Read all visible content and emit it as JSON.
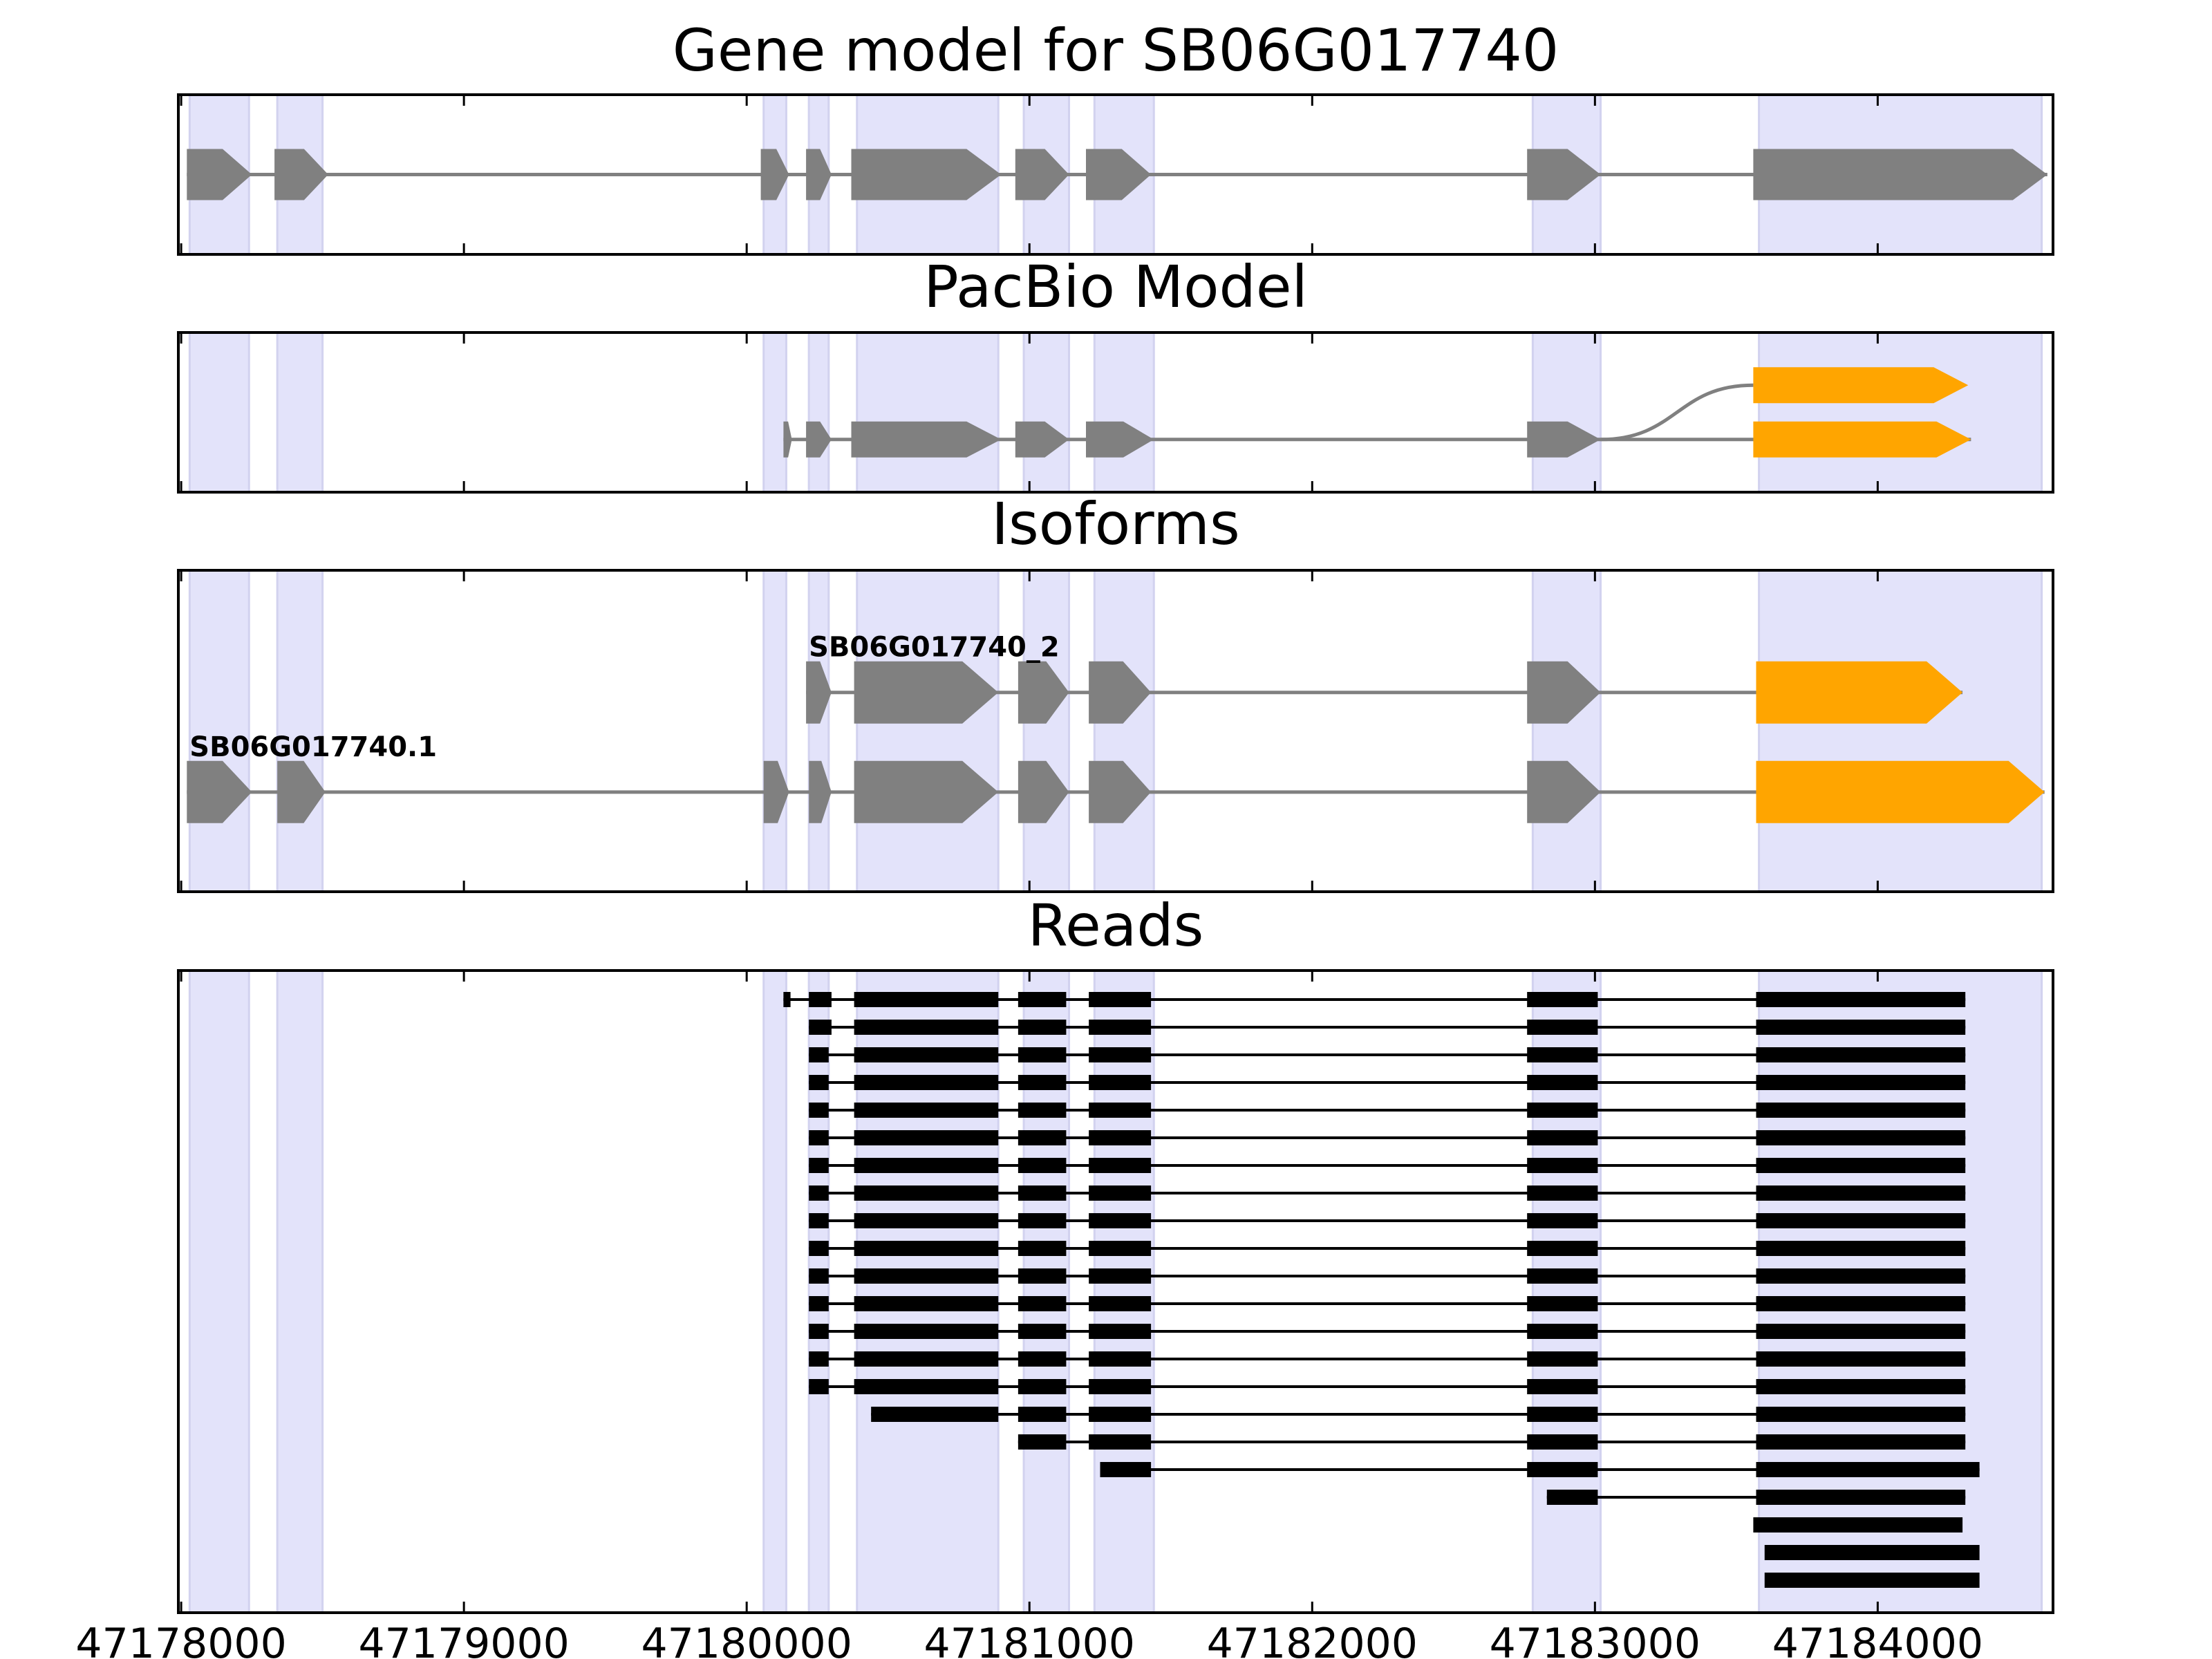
{
  "chart_data": {
    "type": "gene-track",
    "xlim": [
      47177990,
      47184620
    ],
    "x_ticks": [
      47178000,
      47179000,
      47180000,
      47181000,
      47182000,
      47183000,
      47184000
    ],
    "x_tick_labels": [
      "47178000",
      "47179000",
      "47180000",
      "47181000",
      "47182000",
      "47183000",
      "47184000"
    ],
    "colors": {
      "shade": "#e3e3fa",
      "shade_edge": "#d2d2ef",
      "exon": "#808080",
      "intron": "#808080",
      "cds": "#ffa500",
      "read": "#000000"
    },
    "highlight_regions": [
      [
        47178030,
        47178240
      ],
      [
        47178340,
        47178500
      ],
      [
        47180060,
        47180140
      ],
      [
        47180220,
        47180290
      ],
      [
        47180390,
        47180890
      ],
      [
        47180980,
        47181140
      ],
      [
        47181230,
        47181440
      ],
      [
        47182780,
        47183020
      ],
      [
        47183580,
        47184580
      ]
    ],
    "panels": [
      {
        "title": "Gene model for SB06G017740",
        "tracks": [
          {
            "y": 0.5,
            "exons": [
              [
                47178020,
                47178250
              ],
              [
                47178330,
                47178520
              ],
              [
                47180050,
                47180150
              ],
              [
                47180210,
                47180300
              ],
              [
                47180370,
                47180900
              ],
              [
                47180950,
                47181140
              ],
              [
                47181200,
                47181430
              ],
              [
                47182760,
                47183020
              ],
              [
                47183560,
                47184600
              ]
            ],
            "orange": []
          }
        ]
      },
      {
        "title": "PacBio Model",
        "tracks": [
          {
            "y": 0.33,
            "exons": [
              [
                47183560,
                47184320
              ]
            ],
            "orange": [
              [
                47183560,
                47184320
              ]
            ],
            "join_from": 47183020
          },
          {
            "y": 0.67,
            "exons": [
              [
                47180130,
                47180160
              ],
              [
                47180210,
                47180300
              ],
              [
                47180370,
                47180900
              ],
              [
                47180950,
                47181140
              ],
              [
                47181200,
                47181440
              ],
              [
                47182760,
                47183020
              ],
              [
                47183560,
                47184330
              ]
            ],
            "orange": [
              [
                47183560,
                47184330
              ]
            ]
          }
        ]
      },
      {
        "title": "Isoforms",
        "tracks": [
          {
            "y": 0.38,
            "label": "SB06G017740_2",
            "exons": [
              [
                47180210,
                47180300
              ],
              [
                47180380,
                47180890
              ],
              [
                47180960,
                47181140
              ],
              [
                47181210,
                47181430
              ],
              [
                47182760,
                47183020
              ],
              [
                47183570,
                47184300
              ]
            ],
            "orange": [
              [
                47183570,
                47184300
              ]
            ]
          },
          {
            "y": 0.69,
            "label": "SB06G017740.1",
            "exons": [
              [
                47178020,
                47178250
              ],
              [
                47178340,
                47178510
              ],
              [
                47180060,
                47180150
              ],
              [
                47180220,
                47180300
              ],
              [
                47180380,
                47180890
              ],
              [
                47180960,
                47181140
              ],
              [
                47181210,
                47181430
              ],
              [
                47182760,
                47183020
              ],
              [
                47183570,
                47184590
              ]
            ],
            "orange": [
              [
                47183570,
                47184590
              ]
            ]
          }
        ]
      },
      {
        "title": "Reads",
        "reads": [
          {
            "exons": [
              [
                47180130,
                47180155
              ],
              [
                47180220,
                47180300
              ],
              [
                47180380,
                47180890
              ],
              [
                47180960,
                47181130
              ],
              [
                47181210,
                47181430
              ],
              [
                47182760,
                47183010
              ],
              [
                47183570,
                47184310
              ]
            ]
          },
          {
            "exons": [
              [
                47180220,
                47180300
              ],
              [
                47180380,
                47180890
              ],
              [
                47180960,
                47181130
              ],
              [
                47181210,
                47181430
              ],
              [
                47182760,
                47183010
              ],
              [
                47183570,
                47184310
              ]
            ]
          },
          {
            "exons": [
              [
                47180220,
                47180290
              ],
              [
                47180380,
                47180890
              ],
              [
                47180960,
                47181130
              ],
              [
                47181210,
                47181430
              ],
              [
                47182760,
                47183010
              ],
              [
                47183570,
                47184310
              ]
            ]
          },
          {
            "exons": [
              [
                47180220,
                47180290
              ],
              [
                47180380,
                47180890
              ],
              [
                47180960,
                47181130
              ],
              [
                47181210,
                47181430
              ],
              [
                47182760,
                47183010
              ],
              [
                47183570,
                47184310
              ]
            ]
          },
          {
            "exons": [
              [
                47180220,
                47180290
              ],
              [
                47180380,
                47180890
              ],
              [
                47180960,
                47181130
              ],
              [
                47181210,
                47181430
              ],
              [
                47182760,
                47183010
              ],
              [
                47183570,
                47184310
              ]
            ]
          },
          {
            "exons": [
              [
                47180220,
                47180290
              ],
              [
                47180380,
                47180890
              ],
              [
                47180960,
                47181130
              ],
              [
                47181210,
                47181430
              ],
              [
                47182760,
                47183010
              ],
              [
                47183570,
                47184310
              ]
            ]
          },
          {
            "exons": [
              [
                47180220,
                47180290
              ],
              [
                47180380,
                47180890
              ],
              [
                47180960,
                47181130
              ],
              [
                47181210,
                47181430
              ],
              [
                47182760,
                47183010
              ],
              [
                47183570,
                47184310
              ]
            ]
          },
          {
            "exons": [
              [
                47180220,
                47180290
              ],
              [
                47180380,
                47180890
              ],
              [
                47180960,
                47181130
              ],
              [
                47181210,
                47181430
              ],
              [
                47182760,
                47183010
              ],
              [
                47183570,
                47184310
              ]
            ]
          },
          {
            "exons": [
              [
                47180220,
                47180290
              ],
              [
                47180380,
                47180890
              ],
              [
                47180960,
                47181130
              ],
              [
                47181210,
                47181430
              ],
              [
                47182760,
                47183010
              ],
              [
                47183570,
                47184310
              ]
            ]
          },
          {
            "exons": [
              [
                47180220,
                47180290
              ],
              [
                47180380,
                47180890
              ],
              [
                47180960,
                47181130
              ],
              [
                47181210,
                47181430
              ],
              [
                47182760,
                47183010
              ],
              [
                47183570,
                47184310
              ]
            ]
          },
          {
            "exons": [
              [
                47180220,
                47180290
              ],
              [
                47180380,
                47180890
              ],
              [
                47180960,
                47181130
              ],
              [
                47181210,
                47181430
              ],
              [
                47182760,
                47183010
              ],
              [
                47183570,
                47184310
              ]
            ]
          },
          {
            "exons": [
              [
                47180220,
                47180290
              ],
              [
                47180380,
                47180890
              ],
              [
                47180960,
                47181130
              ],
              [
                47181210,
                47181430
              ],
              [
                47182760,
                47183010
              ],
              [
                47183570,
                47184310
              ]
            ]
          },
          {
            "exons": [
              [
                47180220,
                47180290
              ],
              [
                47180380,
                47180890
              ],
              [
                47180960,
                47181130
              ],
              [
                47181210,
                47181430
              ],
              [
                47182760,
                47183010
              ],
              [
                47183570,
                47184310
              ]
            ]
          },
          {
            "exons": [
              [
                47180220,
                47180290
              ],
              [
                47180380,
                47180890
              ],
              [
                47180960,
                47181130
              ],
              [
                47181210,
                47181430
              ],
              [
                47182760,
                47183010
              ],
              [
                47183570,
                47184310
              ]
            ]
          },
          {
            "exons": [
              [
                47180220,
                47180290
              ],
              [
                47180380,
                47180890
              ],
              [
                47180960,
                47181130
              ],
              [
                47181210,
                47181430
              ],
              [
                47182760,
                47183010
              ],
              [
                47183570,
                47184310
              ]
            ]
          },
          {
            "exons": [
              [
                47180440,
                47180890
              ],
              [
                47180960,
                47181130
              ],
              [
                47181210,
                47181430
              ],
              [
                47182760,
                47183010
              ],
              [
                47183570,
                47184310
              ]
            ]
          },
          {
            "exons": [
              [
                47180960,
                47181130
              ],
              [
                47181210,
                47181430
              ],
              [
                47182760,
                47183010
              ],
              [
                47183570,
                47184310
              ]
            ]
          },
          {
            "exons": [
              [
                47181250,
                47181430
              ],
              [
                47182760,
                47183010
              ],
              [
                47183570,
                47184360
              ]
            ]
          },
          {
            "exons": [
              [
                47182830,
                47183010
              ],
              [
                47183570,
                47184310
              ]
            ]
          },
          {
            "exons": [
              [
                47183560,
                47184300
              ]
            ]
          },
          {
            "exons": [
              [
                47183600,
                47184360
              ]
            ]
          },
          {
            "exons": [
              [
                47183600,
                47184360
              ]
            ]
          }
        ]
      }
    ]
  }
}
